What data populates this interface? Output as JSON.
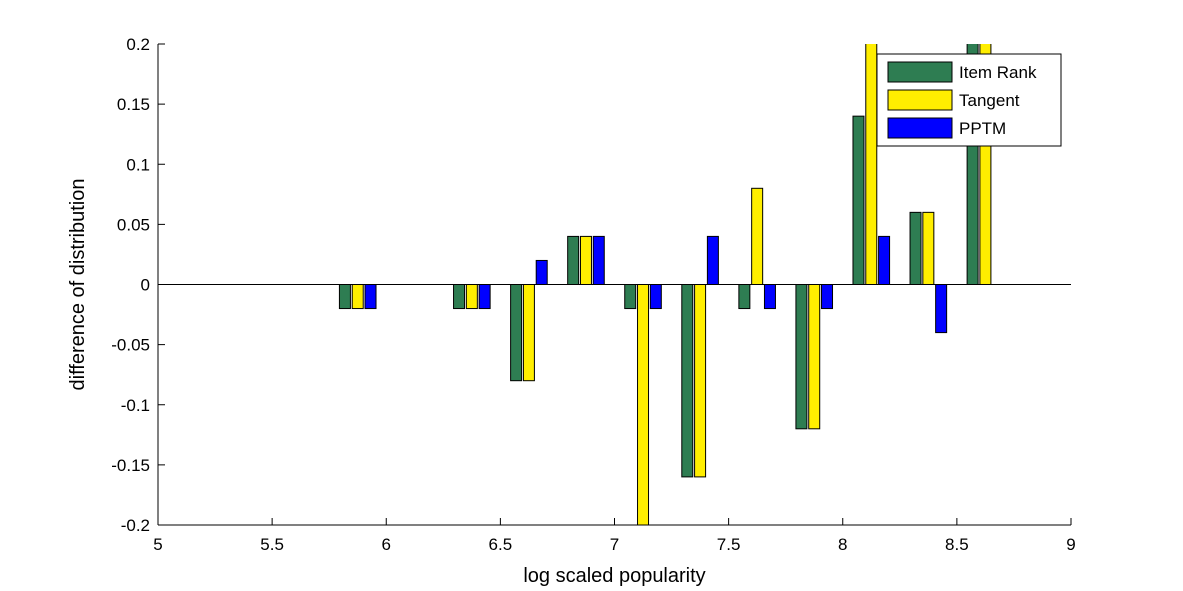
{
  "chart_data": {
    "type": "bar",
    "title": "",
    "xlabel": "log scaled popularity",
    "ylabel": "difference of distribution",
    "xlim": [
      5,
      9
    ],
    "ylim": [
      -0.2,
      0.2
    ],
    "xticks": [
      "5",
      "5.5",
      "6",
      "6.5",
      "7",
      "7.5",
      "8",
      "8.5",
      "9"
    ],
    "xtick_values": [
      5,
      5.5,
      6,
      6.5,
      7,
      7.5,
      8,
      8.5,
      9
    ],
    "yticks": [
      "-0.2",
      "-0.15",
      "-0.1",
      "-0.05",
      "0",
      "0.05",
      "0.1",
      "0.15",
      "0.2"
    ],
    "ytick_values": [
      -0.2,
      -0.15,
      -0.1,
      -0.05,
      0,
      0.05,
      0.1,
      0.15,
      0.2
    ],
    "grid": false,
    "legend_position": "top-right",
    "x": [
      5.875,
      6.375,
      6.625,
      6.875,
      7.125,
      7.375,
      7.625,
      7.875,
      8.125,
      8.375,
      8.625
    ],
    "series": [
      {
        "name": "Item Rank",
        "color": "#2e7d52",
        "values": [
          -0.02,
          -0.02,
          -0.08,
          0.04,
          -0.02,
          -0.16,
          -0.02,
          -0.12,
          0.14,
          0.06,
          0.22
        ]
      },
      {
        "name": "Tangent",
        "color": "#ffee00",
        "values": [
          -0.02,
          -0.02,
          -0.08,
          0.04,
          -0.22,
          -0.16,
          0.08,
          -0.12,
          0.22,
          0.06,
          0.22
        ]
      },
      {
        "name": "PPTM",
        "color": "#0000ff",
        "values": [
          -0.02,
          -0.02,
          0.02,
          0.04,
          -0.02,
          0.04,
          -0.02,
          -0.02,
          0.04,
          -0.04,
          0
        ]
      }
    ]
  }
}
